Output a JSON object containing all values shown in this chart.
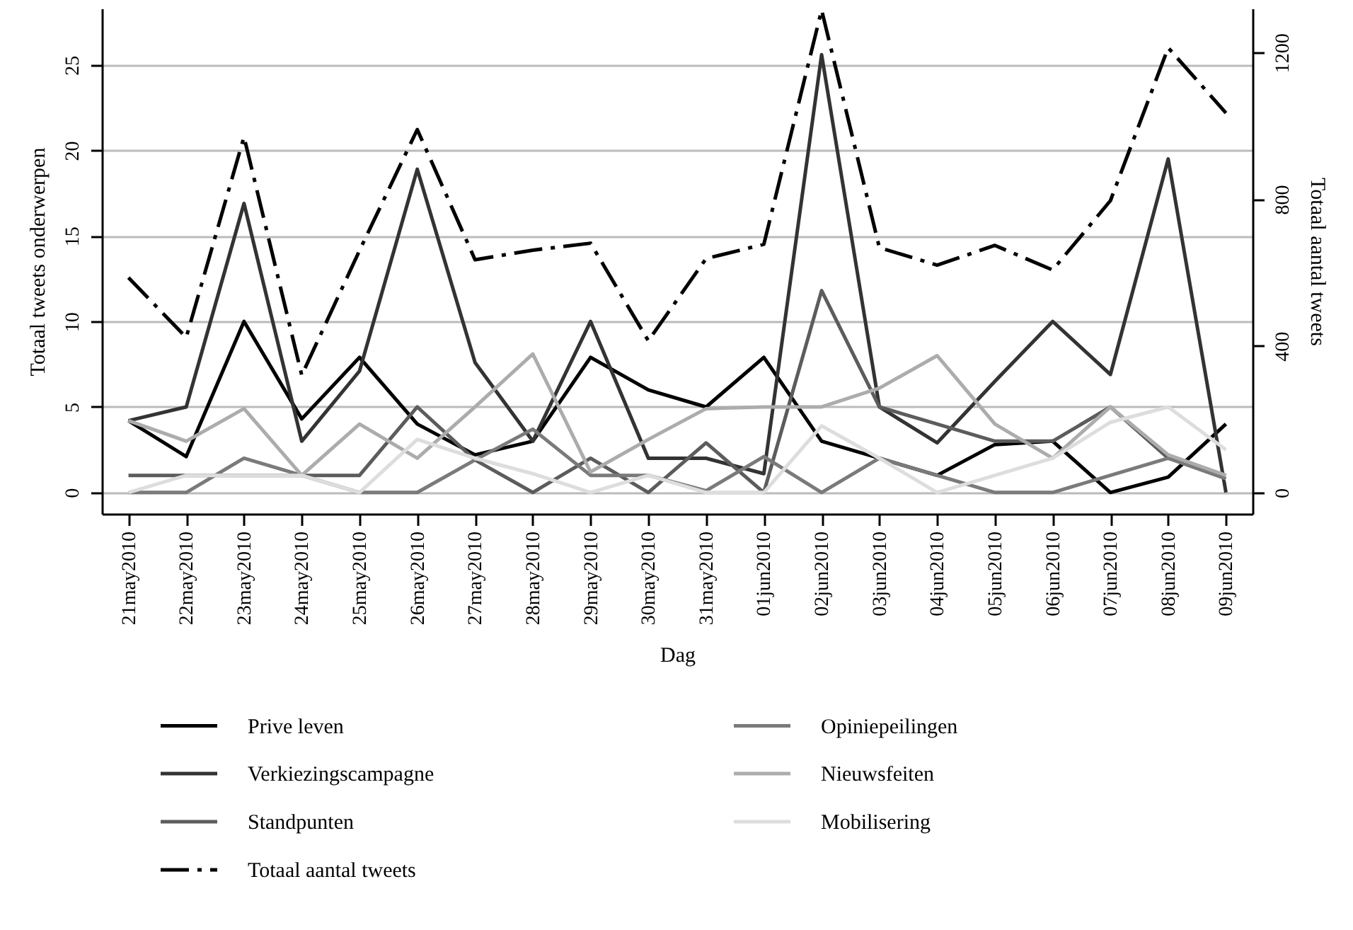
{
  "chart_data": {
    "type": "line",
    "xlabel": "Dag",
    "ylabel": "Totaal tweets onderwerpen",
    "y2label": "Totaal aantal tweets",
    "categories": [
      "21may2010",
      "22may2010",
      "23may2010",
      "24may2010",
      "25may2010",
      "26may2010",
      "27may2010",
      "28may2010",
      "29may2010",
      "30may2010",
      "31may2010",
      "01jun2010",
      "02jun2010",
      "03jun2010",
      "04jun2010",
      "05jun2010",
      "06jun2010",
      "07jun2010",
      "08jun2010",
      "09jun2010"
    ],
    "ylim": [
      -1.25,
      28.3
    ],
    "yticks": [
      0,
      5,
      10,
      15,
      20,
      25
    ],
    "y2lim": [
      -58,
      1320
    ],
    "y2ticks": [
      0,
      400,
      800,
      {
        "value": 1200,
        "label": "1200"
      }
    ],
    "grid": "y",
    "legend": "bottom",
    "marker": "none",
    "series": [
      {
        "name": "Prive leven",
        "color": "#000000",
        "line_style": "solid",
        "values": [
          4.2,
          2.1,
          10,
          4.3,
          7.9,
          4,
          2.2,
          3,
          7.9,
          6,
          5,
          7.9,
          3,
          2,
          1,
          2.8,
          3,
          0,
          0.9,
          4
        ]
      },
      {
        "name": "Verkiezingscampagne",
        "color": "#333333",
        "line_style": "solid",
        "values": [
          4.2,
          5,
          16.9,
          3,
          7.1,
          18.9,
          7.6,
          3,
          10,
          2,
          2,
          1.1,
          25.6,
          5,
          2.9,
          6.5,
          10,
          6.9,
          19.5,
          0
        ]
      },
      {
        "name": "Standpunten",
        "color": "#5c5c5c",
        "line_style": "solid",
        "values": [
          1,
          1,
          1,
          1,
          1,
          5,
          1.9,
          0,
          2,
          0,
          2.9,
          0,
          11.8,
          5,
          4,
          3,
          3,
          5,
          2,
          1
        ]
      },
      {
        "name": "Totaal aantal tweets",
        "color": "#000000",
        "line_style": "dashed",
        "axis": "y2",
        "values": [
          586,
          423,
          970,
          320,
          660,
          990,
          635,
          661,
          680,
          414,
          638,
          677,
          1316,
          668,
          620,
          674,
          607,
          796,
          1213,
          1035
        ]
      },
      {
        "name": "Opiniepeilingen",
        "color": "#7a7a7a",
        "line_style": "solid",
        "values": [
          0,
          0,
          2,
          1,
          0,
          0,
          1.9,
          3.7,
          1,
          1,
          0.1,
          2.1,
          0,
          2,
          1,
          0,
          0,
          1,
          2,
          0.8
        ]
      },
      {
        "name": "Nieuwsfeiten",
        "color": "#acacac",
        "line_style": "solid",
        "values": [
          4.2,
          3,
          4.9,
          1,
          4,
          2,
          5,
          8.1,
          1.2,
          3.1,
          4.9,
          5,
          5,
          6.1,
          8,
          4,
          2,
          5,
          2.2,
          1
        ]
      },
      {
        "name": "Mobilisering",
        "color": "#dddddd",
        "line_style": "solid",
        "values": [
          0,
          1,
          1,
          1,
          0,
          3.1,
          2,
          1.1,
          0,
          1,
          0,
          0,
          3.9,
          2,
          0,
          1,
          2,
          4.1,
          5,
          2.5
        ]
      }
    ]
  }
}
